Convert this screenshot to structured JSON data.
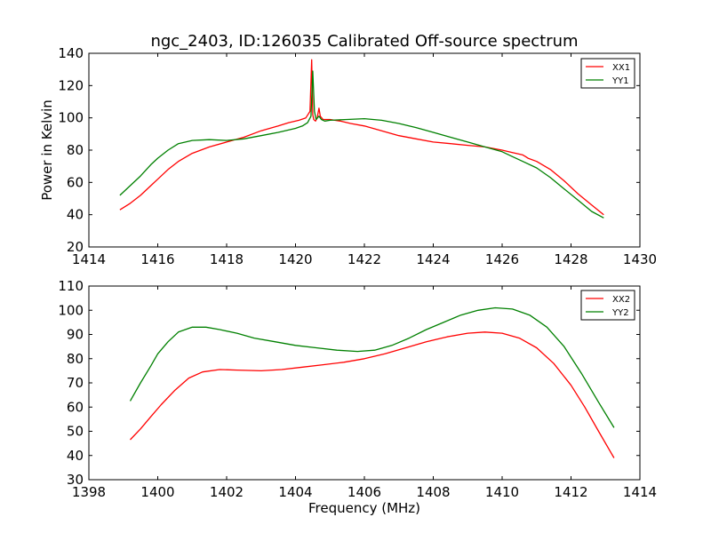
{
  "chart_data": [
    {
      "type": "line",
      "title": "ngc_2403, ID:126035 Calibrated Off-source spectrum",
      "xlabel": "",
      "ylabel": "Power in Kelvin",
      "xlim": [
        1414,
        1430
      ],
      "ylim": [
        20,
        140
      ],
      "xticks": [
        "1414",
        "1416",
        "1418",
        "1420",
        "1422",
        "1424",
        "1426",
        "1428",
        "1430"
      ],
      "yticks": [
        "20",
        "40",
        "60",
        "80",
        "100",
        "120",
        "140"
      ],
      "grid": false,
      "legend": "top-right",
      "series": [
        {
          "name": "XX1",
          "color": "#ff0000",
          "x": [
            1414.9,
            1415.2,
            1415.5,
            1415.8,
            1416.0,
            1416.3,
            1416.6,
            1417.0,
            1417.5,
            1418.0,
            1418.5,
            1419.0,
            1419.5,
            1419.8,
            1420.1,
            1420.3,
            1420.42,
            1420.47,
            1420.5,
            1420.53,
            1420.58,
            1420.63,
            1420.68,
            1420.72,
            1420.8,
            1421.0,
            1421.3,
            1421.6,
            1422.0,
            1422.5,
            1423.0,
            1423.5,
            1424.0,
            1424.5,
            1425.0,
            1425.5,
            1426.0,
            1426.3,
            1426.6,
            1426.68,
            1426.75,
            1427.0,
            1427.4,
            1427.8,
            1428.2,
            1428.6,
            1428.95
          ],
          "y": [
            43,
            47,
            52,
            58,
            62,
            68,
            73,
            78,
            82,
            85,
            88,
            92,
            95,
            97,
            98.5,
            100,
            104,
            136,
            102,
            99,
            98,
            100,
            106,
            101,
            99,
            99,
            98,
            96.5,
            95,
            92,
            89,
            87,
            85,
            84,
            83,
            82,
            80,
            78.5,
            77,
            76,
            75,
            73,
            68,
            61,
            53,
            46,
            40
          ]
        },
        {
          "name": "YY1",
          "color": "#008000",
          "x": [
            1414.9,
            1415.2,
            1415.5,
            1415.8,
            1416.0,
            1416.3,
            1416.6,
            1417.0,
            1417.5,
            1418.0,
            1418.5,
            1419.0,
            1419.5,
            1420.0,
            1420.2,
            1420.35,
            1420.45,
            1420.5,
            1420.55,
            1420.6,
            1420.68,
            1420.75,
            1420.85,
            1421.0,
            1421.5,
            1422.0,
            1422.5,
            1423.0,
            1423.5,
            1424.0,
            1424.5,
            1425.0,
            1425.5,
            1426.0,
            1426.3,
            1426.6,
            1427.0,
            1427.4,
            1427.8,
            1428.2,
            1428.6,
            1428.95
          ],
          "y": [
            52,
            58,
            64,
            71,
            75,
            80,
            84,
            86,
            86.5,
            86,
            87,
            89,
            91,
            93.5,
            95,
            97,
            101,
            129,
            104,
            99,
            101,
            99,
            98,
            98.5,
            99,
            99.5,
            98.5,
            96.5,
            94,
            91,
            88,
            85,
            82,
            79,
            76,
            73,
            69,
            63,
            56,
            49,
            42,
            38
          ]
        }
      ]
    },
    {
      "type": "line",
      "title": "",
      "xlabel": "Frequency (MHz)",
      "ylabel": "",
      "xlim": [
        1398,
        1414
      ],
      "ylim": [
        30,
        110
      ],
      "xticks": [
        "1398",
        "1400",
        "1402",
        "1404",
        "1406",
        "1408",
        "1410",
        "1412",
        "1414"
      ],
      "yticks": [
        "30",
        "40",
        "50",
        "60",
        "70",
        "80",
        "90",
        "100",
        "110"
      ],
      "grid": false,
      "legend": "top-right",
      "series": [
        {
          "name": "XX2",
          "color": "#ff0000",
          "x": [
            1399.2,
            1399.5,
            1399.8,
            1400.1,
            1400.5,
            1400.9,
            1401.3,
            1401.8,
            1402.3,
            1403.0,
            1403.6,
            1404.2,
            1404.8,
            1405.4,
            1406.0,
            1406.6,
            1407.2,
            1407.8,
            1408.4,
            1409.0,
            1409.5,
            1410.0,
            1410.5,
            1411.0,
            1411.5,
            1412.0,
            1412.4,
            1412.8,
            1413.25
          ],
          "y": [
            46.5,
            51,
            56,
            61,
            67,
            72,
            74.5,
            75.5,
            75.3,
            75,
            75.5,
            76.5,
            77.5,
            78.5,
            80,
            82,
            84.5,
            87,
            89,
            90.5,
            91,
            90.5,
            88.5,
            84.5,
            78,
            69,
            60,
            50,
            39
          ]
        },
        {
          "name": "YY2",
          "color": "#008000",
          "x": [
            1399.2,
            1399.5,
            1399.8,
            1400.0,
            1400.3,
            1400.6,
            1401.0,
            1401.4,
            1401.8,
            1402.3,
            1402.8,
            1403.4,
            1404.0,
            1404.6,
            1405.2,
            1405.8,
            1406.3,
            1406.8,
            1407.3,
            1407.8,
            1408.3,
            1408.8,
            1409.3,
            1409.8,
            1410.3,
            1410.8,
            1411.3,
            1411.8,
            1412.3,
            1412.8,
            1413.25
          ],
          "y": [
            62.5,
            70,
            77,
            82,
            87,
            91,
            93,
            93,
            92,
            90.5,
            88.5,
            87,
            85.5,
            84.5,
            83.5,
            83,
            83.5,
            85.5,
            88.5,
            92,
            95,
            98,
            100,
            101,
            100.5,
            98,
            93,
            85,
            74,
            62,
            51.5
          ]
        }
      ]
    }
  ]
}
